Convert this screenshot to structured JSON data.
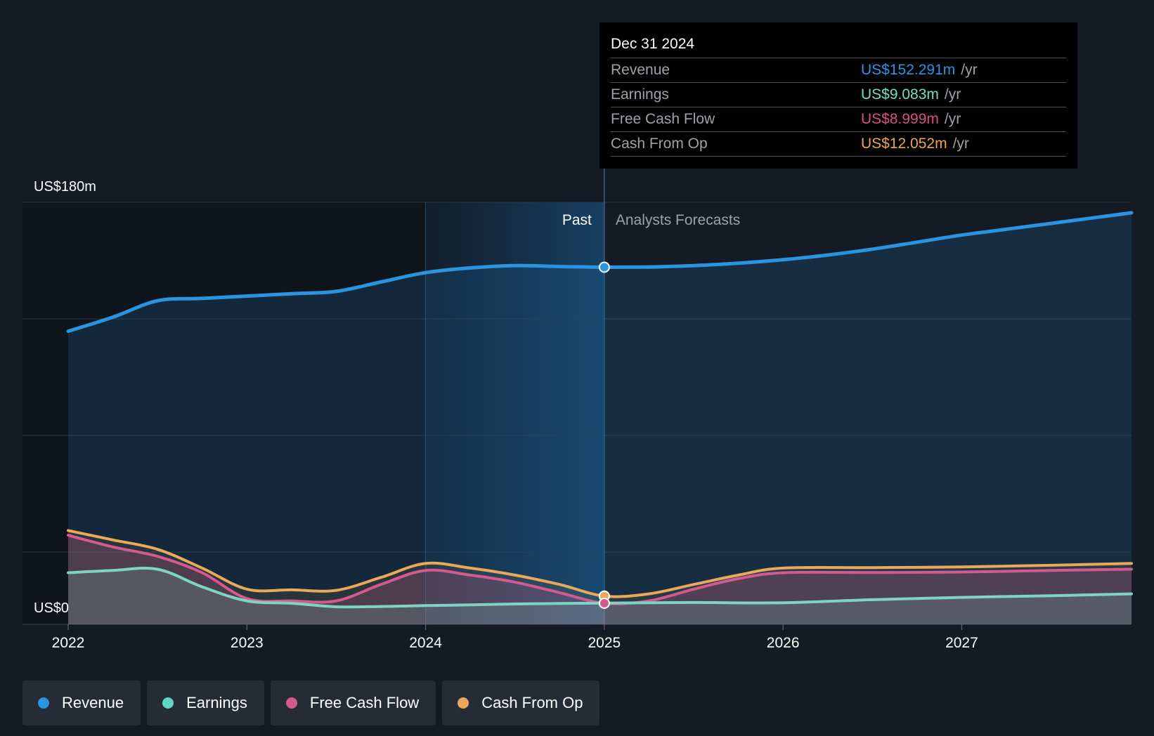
{
  "chart_data": {
    "type": "area",
    "y_top_label": "US$180m",
    "y_bottom_label": "US$0",
    "ylim": [
      0,
      180
    ],
    "xlim": [
      2022.0,
      2027.95
    ],
    "x_ticks": [
      "2022",
      "2023",
      "2024",
      "2025",
      "2026",
      "2027"
    ],
    "past_label": "Past",
    "forecast_label": "Analysts Forecasts",
    "divider_x": 2025.0,
    "highlight_start_x": 2024.0,
    "series": [
      {
        "name": "Revenue",
        "color": "#2b94e0",
        "x": [
          2022.0,
          2022.25,
          2022.5,
          2022.75,
          2023.0,
          2023.25,
          2023.5,
          2023.75,
          2024.0,
          2024.25,
          2024.5,
          2024.75,
          2025.0,
          2025.25,
          2025.5,
          2025.75,
          2026.0,
          2026.25,
          2026.5,
          2026.75,
          2027.0,
          2027.25,
          2027.5,
          2027.75,
          2027.95
        ],
        "values": [
          125,
          131,
          138,
          139,
          140,
          141,
          142,
          146,
          150,
          152,
          153,
          152.6,
          152.291,
          152.4,
          153,
          154,
          155.5,
          157.5,
          160,
          163,
          166,
          168.5,
          171,
          173.5,
          175.5
        ]
      },
      {
        "name": "Cash From Op",
        "color": "#e8a95a",
        "x": [
          2022.0,
          2022.25,
          2022.5,
          2022.75,
          2023.0,
          2023.25,
          2023.5,
          2023.75,
          2024.0,
          2024.25,
          2024.5,
          2024.75,
          2025.0,
          2025.25,
          2025.5,
          2025.75,
          2026.0,
          2026.5,
          2027.0,
          2027.5,
          2027.95
        ],
        "values": [
          40,
          36,
          32,
          24,
          15,
          14.7,
          14.5,
          20,
          26,
          24,
          21,
          17,
          12.052,
          13,
          17,
          21,
          24,
          24.2,
          24.5,
          25.2,
          26
        ]
      },
      {
        "name": "Free Cash Flow",
        "color": "#d35a90",
        "x": [
          2022.0,
          2022.25,
          2022.5,
          2022.75,
          2023.0,
          2023.25,
          2023.5,
          2023.75,
          2024.0,
          2024.25,
          2024.5,
          2024.75,
          2025.0,
          2025.25,
          2025.5,
          2025.75,
          2026.0,
          2026.5,
          2027.0,
          2027.5,
          2027.95
        ],
        "values": [
          38,
          33,
          29,
          22,
          11,
          10,
          10,
          17,
          23,
          21,
          18,
          13.5,
          8.999,
          10,
          15,
          19.5,
          22,
          22.1,
          22.3,
          23,
          23.5
        ]
      },
      {
        "name": "Earnings",
        "color": "#7ed4c4",
        "x": [
          2022.0,
          2022.25,
          2022.5,
          2022.75,
          2023.0,
          2023.25,
          2023.5,
          2023.75,
          2024.0,
          2024.25,
          2024.5,
          2024.75,
          2025.0,
          2025.5,
          2026.0,
          2026.5,
          2027.0,
          2027.5,
          2027.95
        ],
        "values": [
          22,
          23,
          23.5,
          16,
          10,
          9,
          7.5,
          7.6,
          8,
          8.3,
          8.7,
          8.9,
          9.083,
          9.3,
          9.2,
          10.5,
          11.5,
          12.2,
          13
        ]
      }
    ]
  },
  "tooltip": {
    "date": "Dec 31 2024",
    "rows": [
      {
        "label": "Revenue",
        "value": "US$152.291m",
        "unit": "/yr",
        "color": "#2b94e0"
      },
      {
        "label": "Earnings",
        "value": "US$9.083m",
        "unit": "/yr",
        "color": "#6fe0c8"
      },
      {
        "label": "Free Cash Flow",
        "value": "US$8.999m",
        "unit": "/yr",
        "color": "#d64f8c"
      },
      {
        "label": "Cash From Op",
        "value": "US$12.052m",
        "unit": "/yr",
        "color": "#e9a84f"
      }
    ]
  },
  "legend": [
    {
      "label": "Revenue",
      "color": "#2b94e0"
    },
    {
      "label": "Earnings",
      "color": "#5fd6c4"
    },
    {
      "label": "Free Cash Flow",
      "color": "#d35a90"
    },
    {
      "label": "Cash From Op",
      "color": "#e8a95a"
    }
  ]
}
